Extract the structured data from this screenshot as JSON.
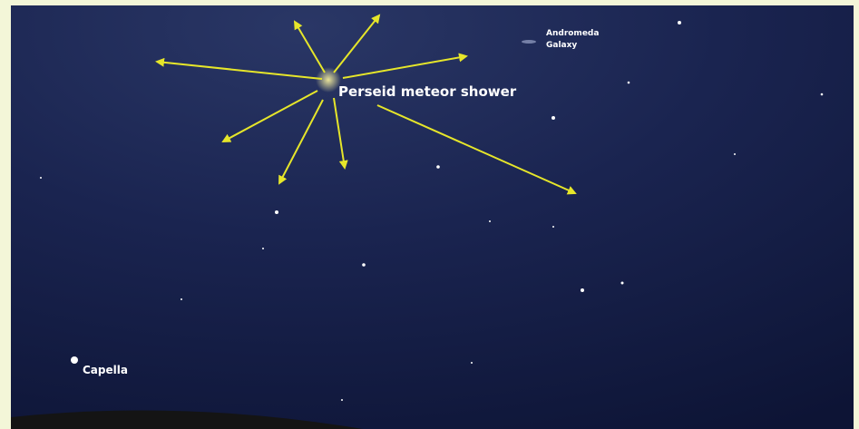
{
  "labels": {
    "radiant": "Perseid meteor shower",
    "galaxy_line1": "Andromeda",
    "galaxy_line2": "Galaxy",
    "star": "Capella"
  }
}
